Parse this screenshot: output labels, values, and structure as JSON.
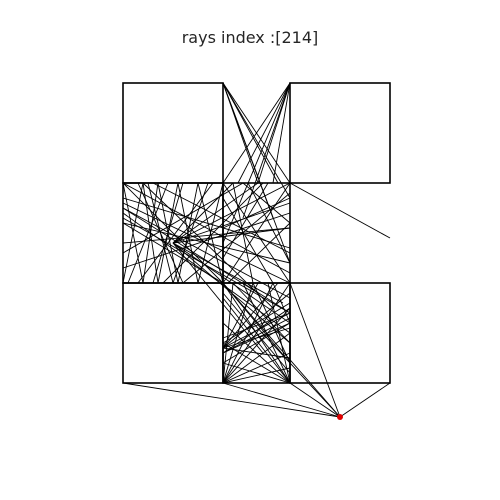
{
  "title": "rays index :[214]",
  "colors": {
    "background": "#ffffff",
    "lines": "#000000",
    "source_point": "#e00000"
  },
  "diagram": {
    "description_type": "ray-tracing visibility diagram",
    "x_range": [
      0,
      3
    ],
    "y_range": [
      -0.35,
      4
    ],
    "blocks": [
      {
        "x0": 0,
        "y0": 2,
        "x1": 1,
        "y1": 3
      },
      {
        "x0": 1.67,
        "y0": 2,
        "x1": 2.67,
        "y1": 3
      },
      {
        "x0": 0,
        "y0": 1,
        "x1": 1,
        "y1": 2
      },
      {
        "x0": 1,
        "y0": 1,
        "x1": 1.67,
        "y1": 2
      },
      {
        "x0": 0,
        "y0": 0,
        "x1": 1,
        "y1": 1
      },
      {
        "x0": 1,
        "y0": 0,
        "x1": 1.67,
        "y1": 1
      },
      {
        "x0": 1.67,
        "y0": 0,
        "x1": 2.67,
        "y1": 1
      }
    ],
    "source": {
      "x": 2.17,
      "y": -0.34
    },
    "rays": [
      [
        [
          2.17,
          -0.34
        ],
        [
          0,
          0
        ]
      ],
      [
        [
          2.17,
          -0.34
        ],
        [
          1,
          0
        ]
      ],
      [
        [
          2.17,
          -0.34
        ],
        [
          1.67,
          0
        ]
      ],
      [
        [
          2.17,
          -0.34
        ],
        [
          2.67,
          0
        ]
      ],
      [
        [
          2.17,
          -0.34
        ],
        [
          1.67,
          1
        ]
      ],
      [
        [
          2.17,
          -0.34
        ],
        [
          1,
          1
        ]
      ],
      [
        [
          2.17,
          -0.34
        ],
        [
          1.3,
          0.6
        ]
      ],
      [
        [
          1,
          0
        ],
        [
          1.67,
          0.15
        ]
      ],
      [
        [
          1,
          0
        ],
        [
          1.67,
          0.3
        ]
      ],
      [
        [
          1,
          0
        ],
        [
          1.67,
          0.5
        ]
      ],
      [
        [
          1,
          0
        ],
        [
          1.67,
          0.75
        ]
      ],
      [
        [
          1,
          0
        ],
        [
          1.67,
          1
        ]
      ],
      [
        [
          1,
          0
        ],
        [
          1.5,
          1
        ]
      ],
      [
        [
          1,
          0
        ],
        [
          1.3,
          1
        ]
      ],
      [
        [
          1,
          0
        ],
        [
          1.1,
          1
        ]
      ],
      [
        [
          1.67,
          0
        ],
        [
          1,
          0.2
        ]
      ],
      [
        [
          1.67,
          0
        ],
        [
          1,
          0.4
        ]
      ],
      [
        [
          1.67,
          0
        ],
        [
          1,
          0.6
        ]
      ],
      [
        [
          1.67,
          0
        ],
        [
          1,
          0.85
        ]
      ],
      [
        [
          1.67,
          0
        ],
        [
          1.2,
          1
        ]
      ],
      [
        [
          1.67,
          0
        ],
        [
          1.45,
          1
        ]
      ],
      [
        [
          1.67,
          0
        ],
        [
          1,
          1
        ]
      ],
      [
        [
          1,
          0.35
        ],
        [
          1.67,
          0.55
        ]
      ],
      [
        [
          1,
          0.35
        ],
        [
          1.67,
          0.7
        ]
      ],
      [
        [
          1,
          0.35
        ],
        [
          1.67,
          0.9
        ]
      ],
      [
        [
          1,
          0.35
        ],
        [
          1.67,
          0.25
        ]
      ],
      [
        [
          1,
          0.35
        ],
        [
          1.55,
          1
        ]
      ],
      [
        [
          1,
          0.35
        ],
        [
          1.35,
          1
        ]
      ],
      [
        [
          1,
          0.3
        ],
        [
          1.67,
          0.75
        ]
      ],
      [
        [
          1,
          0.3
        ],
        [
          1.67,
          0.6
        ]
      ],
      [
        [
          1,
          0.4
        ],
        [
          1.67,
          0.8
        ]
      ],
      [
        [
          1.67,
          0.65
        ],
        [
          1,
          0.3
        ]
      ],
      [
        [
          1.67,
          0.7
        ],
        [
          1,
          0.45
        ]
      ],
      [
        [
          1.67,
          0.6
        ],
        [
          1,
          0.2
        ]
      ],
      [
        [
          1,
          0.9
        ],
        [
          1.67,
          0.1
        ]
      ],
      [
        [
          1,
          1
        ],
        [
          1.67,
          0.2
        ]
      ],
      [
        [
          1.1,
          1
        ],
        [
          1.67,
          0.4
        ]
      ],
      [
        [
          1.3,
          1
        ],
        [
          1.67,
          0.2
        ]
      ],
      [
        [
          1.5,
          1
        ],
        [
          1.67,
          0.6
        ]
      ],
      [
        [
          1.2,
          1
        ],
        [
          1.67,
          0.7
        ]
      ],
      [
        [
          0,
          2
        ],
        [
          1,
          1
        ]
      ],
      [
        [
          0,
          1.6
        ],
        [
          1,
          1
        ]
      ],
      [
        [
          0,
          1.8
        ],
        [
          1.67,
          1
        ]
      ],
      [
        [
          0,
          1.65
        ],
        [
          1.67,
          0.7
        ]
      ],
      [
        [
          0,
          1.7
        ],
        [
          1.67,
          0.5
        ]
      ],
      [
        [
          0,
          1.75
        ],
        [
          1.67,
          0.85
        ]
      ],
      [
        [
          0.5,
          1.4
        ],
        [
          1.67,
          0.6
        ]
      ],
      [
        [
          0.5,
          1.4
        ],
        [
          1.67,
          0.4
        ]
      ],
      [
        [
          0.5,
          1.4
        ],
        [
          1.4,
          0.3
        ]
      ],
      [
        [
          0.5,
          1.4
        ],
        [
          1.6,
          0.8
        ]
      ],
      [
        [
          0,
          1.75
        ],
        [
          1.35,
          0.9
        ]
      ],
      [
        [
          0.2,
          2
        ],
        [
          1.5,
          0.75
        ]
      ],
      [
        [
          0,
          2
        ],
        [
          0.2,
          1
        ]
      ],
      [
        [
          0.2,
          2
        ],
        [
          0,
          1
        ]
      ],
      [
        [
          0.2,
          2
        ],
        [
          0.35,
          1
        ]
      ],
      [
        [
          0.35,
          2
        ],
        [
          0.2,
          1
        ]
      ],
      [
        [
          0.35,
          2
        ],
        [
          0.55,
          1
        ]
      ],
      [
        [
          0.55,
          2
        ],
        [
          0.35,
          1
        ]
      ],
      [
        [
          0.55,
          2
        ],
        [
          0.75,
          1
        ]
      ],
      [
        [
          0.75,
          2
        ],
        [
          0.55,
          1
        ]
      ],
      [
        [
          0.75,
          2
        ],
        [
          1,
          1
        ]
      ],
      [
        [
          1,
          2
        ],
        [
          0.75,
          1
        ]
      ],
      [
        [
          0.25,
          2
        ],
        [
          0.5,
          1
        ]
      ],
      [
        [
          0.6,
          2
        ],
        [
          0.3,
          1
        ]
      ],
      [
        [
          0.85,
          2
        ],
        [
          0.5,
          1
        ]
      ],
      [
        [
          0.15,
          2
        ],
        [
          0.6,
          1
        ]
      ],
      [
        [
          0.9,
          2
        ],
        [
          0.15,
          1
        ]
      ],
      [
        [
          0.45,
          2
        ],
        [
          0.05,
          1
        ]
      ],
      [
        [
          0,
          2
        ],
        [
          1.67,
          1.1
        ]
      ],
      [
        [
          0,
          1.85
        ],
        [
          1.67,
          1.35
        ]
      ],
      [
        [
          0.5,
          1.4
        ],
        [
          1.67,
          1.8
        ]
      ],
      [
        [
          0.5,
          1.4
        ],
        [
          1.67,
          1.55
        ]
      ],
      [
        [
          0.5,
          1.4
        ],
        [
          1.35,
          2
        ]
      ],
      [
        [
          0.5,
          1.4
        ],
        [
          1.1,
          2
        ]
      ],
      [
        [
          0.5,
          1.4
        ],
        [
          1.67,
          2
        ]
      ],
      [
        [
          0,
          1.4
        ],
        [
          1.67,
          1.55
        ]
      ],
      [
        [
          0,
          1.6
        ],
        [
          1.67,
          1.2
        ]
      ],
      [
        [
          0,
          1.3
        ],
        [
          1.2,
          2
        ]
      ],
      [
        [
          0.3,
          2
        ],
        [
          1.67,
          1.3
        ]
      ],
      [
        [
          0.6,
          1
        ],
        [
          1.67,
          1.9
        ]
      ],
      [
        [
          0.4,
          1
        ],
        [
          1.4,
          2
        ]
      ],
      [
        [
          0,
          1.15
        ],
        [
          1.67,
          1.7
        ]
      ],
      [
        [
          1,
          2
        ],
        [
          1.67,
          1
        ]
      ],
      [
        [
          1.67,
          2
        ],
        [
          1,
          1
        ]
      ],
      [
        [
          1.25,
          2
        ],
        [
          1.67,
          1.2
        ]
      ],
      [
        [
          1.45,
          2
        ],
        [
          1,
          1.25
        ]
      ],
      [
        [
          1.2,
          2
        ],
        [
          1.67,
          1.6
        ]
      ],
      [
        [
          1,
          1.55
        ],
        [
          1.67,
          1.85
        ]
      ],
      [
        [
          1.67,
          1.6
        ],
        [
          1.05,
          1
        ]
      ],
      [
        [
          1,
          1.85
        ],
        [
          1.5,
          1
        ]
      ],
      [
        [
          1.1,
          2
        ],
        [
          1.3,
          1
        ]
      ],
      [
        [
          1,
          3
        ],
        [
          1.67,
          2
        ]
      ],
      [
        [
          1.67,
          3
        ],
        [
          1,
          2
        ]
      ],
      [
        [
          1,
          3
        ],
        [
          1.35,
          2
        ]
      ],
      [
        [
          1.67,
          3
        ],
        [
          1.35,
          2
        ]
      ],
      [
        [
          1,
          3
        ],
        [
          1.5,
          1.65
        ]
      ],
      [
        [
          1.67,
          3
        ],
        [
          1.2,
          1.65
        ]
      ],
      [
        [
          1,
          3
        ],
        [
          1.67,
          1.2
        ]
      ],
      [
        [
          1.67,
          3
        ],
        [
          1.0,
          1.4
        ]
      ],
      [
        [
          1,
          3
        ],
        [
          1.67,
          1.85
        ]
      ],
      [
        [
          1.67,
          3
        ],
        [
          1.15,
          2
        ]
      ],
      [
        [
          1.67,
          3
        ],
        [
          1.5,
          2
        ]
      ],
      [
        [
          1,
          3
        ],
        [
          1.55,
          2
        ]
      ],
      [
        [
          1.67,
          2
        ],
        [
          2.67,
          1.45
        ]
      ]
    ]
  }
}
